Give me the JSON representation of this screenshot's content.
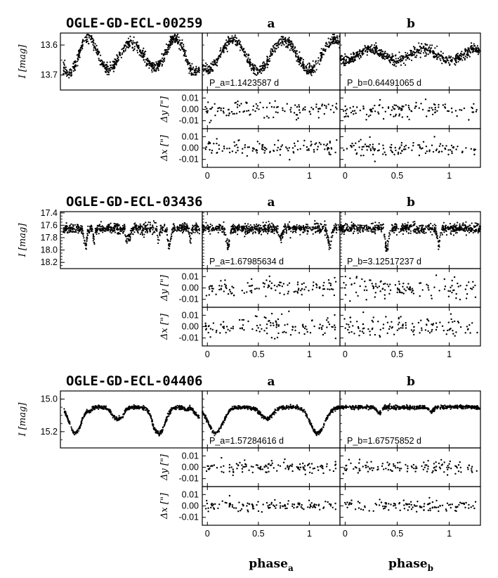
{
  "x_ticks": [
    0,
    0.5,
    1
  ],
  "x_tick_labels": [
    "0",
    "0.5",
    "1"
  ],
  "x_range": [
    -0.05,
    1.3
  ],
  "delta_ticks": [
    0.01,
    0.0,
    -0.01
  ],
  "delta_tick_labels": [
    "0.01",
    "0.00",
    "-0.01"
  ],
  "delta_range": [
    -0.017,
    0.017
  ],
  "ylabels": {
    "mag": "I [mag]",
    "dy": "Δy [\"]",
    "dx": "Δx [\"]"
  },
  "xlabels": {
    "a": "phase",
    "a_sub": "a",
    "b": "phase",
    "b_sub": "b"
  },
  "col_labels": [
    "a",
    "b"
  ],
  "chart_data": [
    {
      "type": "scatter",
      "title": "OGLE-GD-ECL-00259",
      "ylabel": "I [mag]",
      "mag_range": [
        13.75,
        13.56
      ],
      "mag_ticks": [
        13.6,
        13.7
      ],
      "mag_tick_labels": [
        "13.6",
        "13.7"
      ],
      "base_mag": 13.632,
      "periods": {
        "a": "P_a=1.1423587 d",
        "b": "P_b=0.64491065 d"
      },
      "components": {
        "a": {
          "type": "sinusoid",
          "amplitude": 0.05,
          "cycles_per_phase": 2
        },
        "b": {
          "type": "sinusoid",
          "amplitude": 0.02,
          "cycles_per_phase": 2
        }
      },
      "scatter": {
        "mag": 0.009,
        "delta": 0.0035
      }
    },
    {
      "type": "scatter",
      "title": "OGLE-GD-ECL-03436",
      "ylabel": "I [mag]",
      "mag_range": [
        18.3,
        17.38
      ],
      "mag_ticks": [
        17.4,
        17.6,
        17.8,
        18.0,
        18.2
      ],
      "mag_tick_labels": [
        "17.4",
        "17.6",
        "17.8",
        "18.0",
        "18.2"
      ],
      "base_mag": 17.65,
      "periods": {
        "a": "P_a=1.67985634 d",
        "b": "P_b=3.12517237 d"
      },
      "components": {
        "a": {
          "type": "eclipsing",
          "eclipses": [
            {
              "phase": 0.2,
              "depth": 0.28,
              "width": 0.018
            },
            {
              "phase": 0.72,
              "depth": 0.15,
              "width": 0.018
            }
          ]
        },
        "b": {
          "type": "eclipsing",
          "eclipses": [
            {
              "phase": 0.4,
              "depth": 0.34,
              "width": 0.014
            },
            {
              "phase": 0.9,
              "depth": 0.24,
              "width": 0.014
            }
          ]
        }
      },
      "scatter": {
        "mag": 0.04,
        "delta": 0.0045
      }
    },
    {
      "type": "scatter",
      "title": "OGLE-GD-ECL-04406",
      "ylabel": "I [mag]",
      "mag_range": [
        15.3,
        14.95
      ],
      "mag_ticks": [
        15.0,
        15.2
      ],
      "mag_tick_labels": [
        "15.0",
        "15.2"
      ],
      "base_mag": 15.05,
      "periods": {
        "a": "P_a=1.57284616 d",
        "b": "P_b=1.67575852 d"
      },
      "components": {
        "a": {
          "type": "eclipsing",
          "eclipses": [
            {
              "phase": 0.08,
              "depth": 0.16,
              "width": 0.07
            },
            {
              "phase": 0.58,
              "depth": 0.07,
              "width": 0.06
            }
          ]
        },
        "b": {
          "type": "eclipsing",
          "eclipses": [
            {
              "phase": 0.33,
              "depth": 0.035,
              "width": 0.025
            },
            {
              "phase": 0.83,
              "depth": 0.025,
              "width": 0.025
            }
          ]
        }
      },
      "scatter": {
        "mag": 0.006,
        "delta": 0.0025
      }
    }
  ]
}
